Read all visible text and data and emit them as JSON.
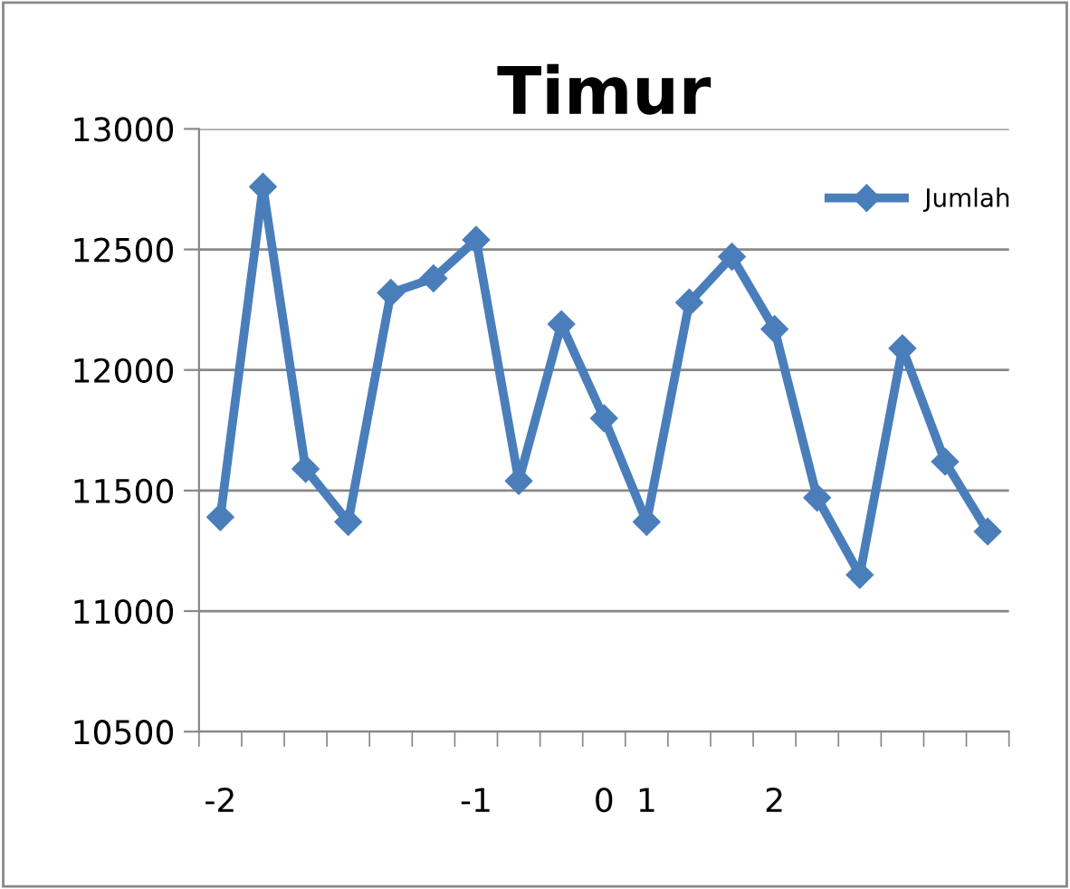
{
  "chart_data": {
    "type": "line",
    "title": "Timur",
    "categories": [
      "-2",
      null,
      null,
      null,
      null,
      null,
      "-1",
      null,
      null,
      "0",
      "1",
      null,
      null,
      "2",
      null,
      null,
      null,
      null,
      null
    ],
    "series": [
      {
        "name": "Jumlah",
        "color": "#4a7ebb",
        "values": [
          11390,
          12760,
          11590,
          11370,
          12320,
          12380,
          12540,
          11540,
          12190,
          11800,
          11370,
          12280,
          12470,
          12170,
          11470,
          11150,
          12090,
          11620,
          11330
        ]
      }
    ],
    "ylim": [
      10500,
      13000
    ],
    "yticks": [
      10500,
      11000,
      11500,
      12000,
      12500,
      13000
    ],
    "grid": "y",
    "legend": "top right",
    "marker": "diamond",
    "line_style": "solid"
  }
}
